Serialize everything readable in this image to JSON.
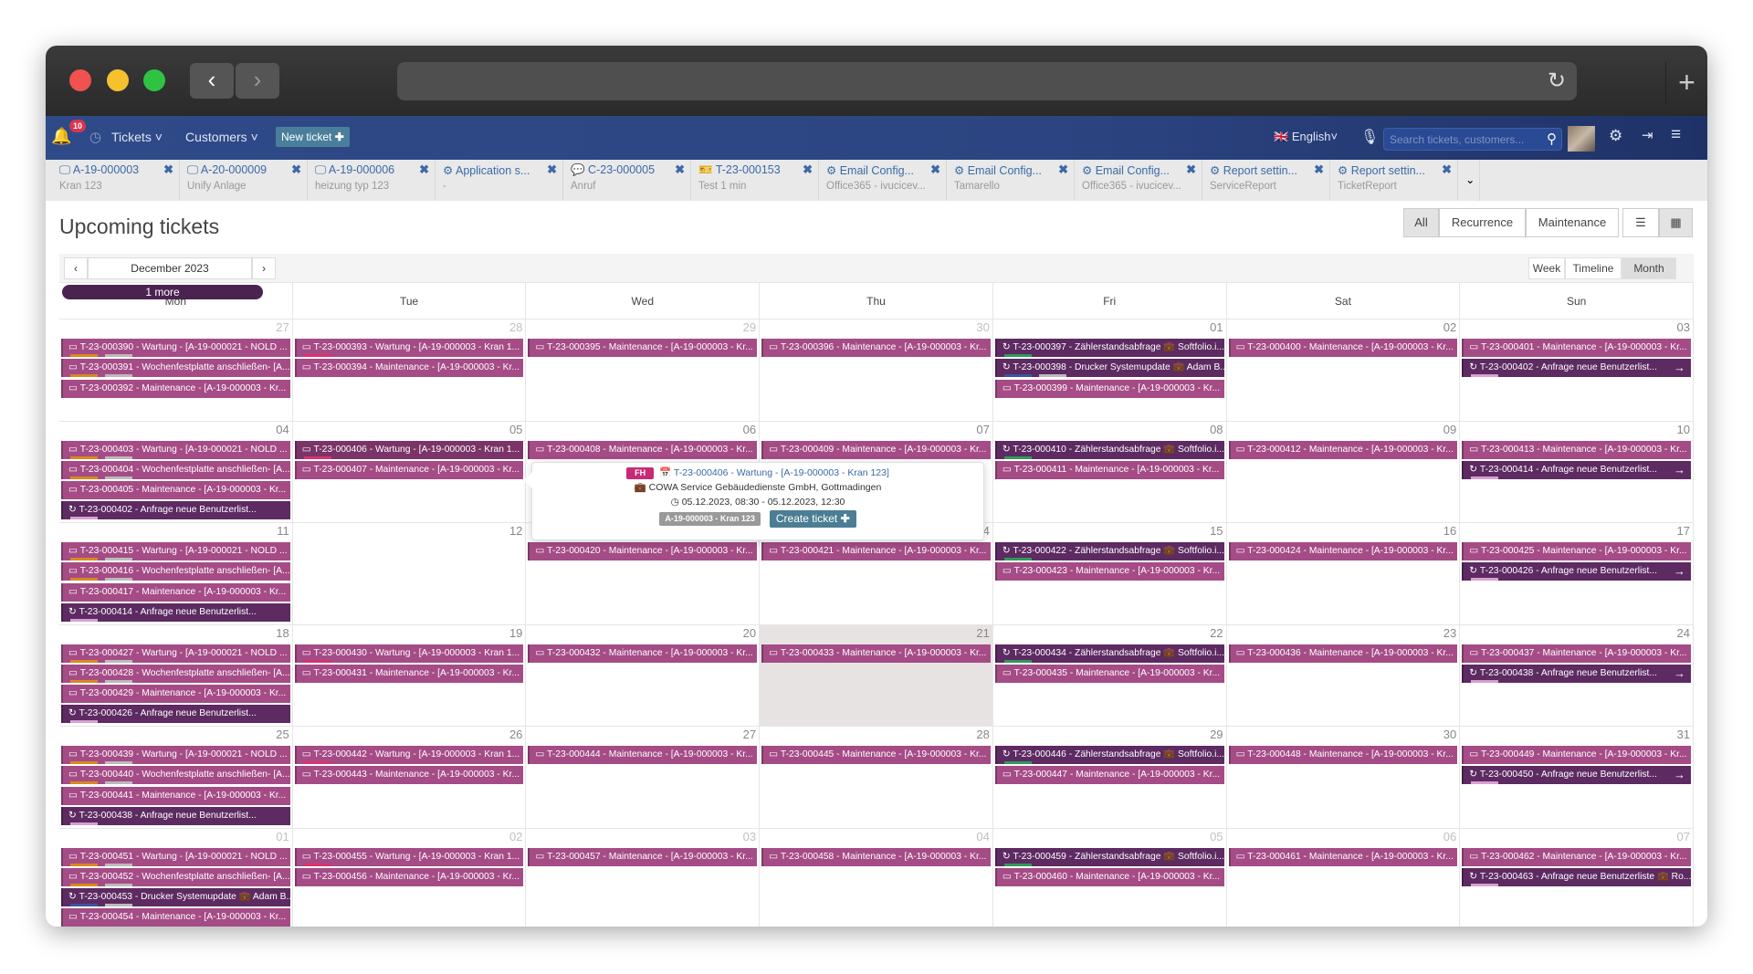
{
  "nav": {
    "notifications": "10",
    "tickets": "Tickets",
    "customers": "Customers",
    "new_ticket": "New ticket",
    "language": "English",
    "search_placeholder": "Search tickets, customers..."
  },
  "tabs": [
    {
      "icon": "monitor",
      "title": "A-19-000003",
      "sub": "Kran 123"
    },
    {
      "icon": "monitor",
      "title": "A-20-000009",
      "sub": "Unify Anlage"
    },
    {
      "icon": "monitor",
      "title": "A-19-000006",
      "sub": "heizung typ 123"
    },
    {
      "icon": "gear",
      "title": "Application s...",
      "sub": "-"
    },
    {
      "icon": "chat",
      "title": "C-23-000005",
      "sub": "Anruf"
    },
    {
      "icon": "ticket",
      "title": "T-23-000153",
      "sub": "Test 1 min"
    },
    {
      "icon": "gear",
      "title": "Email Config...",
      "sub": "Office365 - ivucicev..."
    },
    {
      "icon": "gear",
      "title": "Email Config...",
      "sub": "Tamarello"
    },
    {
      "icon": "gear",
      "title": "Email Config...",
      "sub": "Office365 - ivucicev..."
    },
    {
      "icon": "gear",
      "title": "Report settin...",
      "sub": "ServiceReport"
    },
    {
      "icon": "gear",
      "title": "Report settin...",
      "sub": "TicketReport"
    }
  ],
  "page": {
    "title": "Upcoming tickets",
    "filters": [
      "All",
      "Recurrence",
      "Maintenance"
    ],
    "active_filter": "All",
    "month": "December 2023",
    "views": [
      "Week",
      "Timeline",
      "Month"
    ],
    "active_view": "Month"
  },
  "colors": {
    "maintenance": "#a54c87",
    "recurrence": "#5d2a62",
    "nav": "#2f4a88",
    "badge": "#c52b77"
  },
  "weekdays": [
    "Mon",
    "Tue",
    "Wed",
    "Thu",
    "Fri",
    "Sat",
    "Sun"
  ],
  "weeks": [
    {
      "days": [
        {
          "num": "27",
          "muted": true,
          "events": [
            {
              "text": "T-23-000390 - Wartung - [A-19-000021 - NOLD ...",
              "kind": "m",
              "tags": [
                "#d88a1e",
                "#bbb"
              ]
            },
            {
              "text": "T-23-000391 - Wochenfestplatte anschließen- [A...",
              "kind": "m",
              "tags": [
                "#d88a1e",
                "#bbb"
              ]
            },
            {
              "text": "T-23-000392 - Maintenance - [A-19-000003 - Kr...",
              "kind": "m"
            }
          ]
        },
        {
          "num": "28",
          "muted": true,
          "events": [
            {
              "text": "T-23-000393 - Wartung - [A-19-000003 - Kran 1...",
              "kind": "m",
              "tags": [
                "#d9336f"
              ]
            },
            {
              "text": "T-23-000394 - Maintenance - [A-19-000003 - Kr...",
              "kind": "m"
            }
          ]
        },
        {
          "num": "29",
          "muted": true,
          "events": [
            {
              "text": "T-23-000395 - Maintenance - [A-19-000003 - Kr...",
              "kind": "m"
            }
          ]
        },
        {
          "num": "30",
          "muted": true,
          "events": [
            {
              "text": "T-23-000396 - Maintenance - [A-19-000003 - Kr...",
              "kind": "m"
            }
          ]
        },
        {
          "num": "01",
          "events": [
            {
              "text": "T-23-000397 - Zählerstandsabfrage 💼 Softfolio.i...",
              "kind": "r",
              "tags": [
                "#2f9a5a"
              ]
            },
            {
              "text": "T-23-000398 - Drucker Systemupdate 💼 Adam B...",
              "kind": "r",
              "tags": [
                "#3a55a0",
                "#bbb"
              ]
            },
            {
              "text": "T-23-000399 - Maintenance - [A-19-000003 - Kr...",
              "kind": "m"
            }
          ]
        },
        {
          "num": "02",
          "events": [
            {
              "text": "T-23-000400 - Maintenance - [A-19-000003 - Kr...",
              "kind": "m"
            }
          ]
        },
        {
          "num": "03",
          "events": [
            {
              "text": "T-23-000401 - Maintenance - [A-19-000003 - Kr...",
              "kind": "m"
            },
            {
              "text": "T-23-000402 - Anfrage neue Benutzerlist...",
              "kind": "r",
              "arrow": true,
              "tags": [
                "#d9a0d0"
              ]
            }
          ]
        }
      ]
    },
    {
      "days": [
        {
          "num": "04",
          "events": [
            {
              "text": "T-23-000403 - Wartung - [A-19-000021 - NOLD ...",
              "kind": "m",
              "tags": [
                "#d88a1e",
                "#bbb"
              ]
            },
            {
              "text": "T-23-000404 - Wochenfestplatte anschließen- [A...",
              "kind": "m",
              "tags": [
                "#d88a1e",
                "#bbb"
              ]
            },
            {
              "text": "T-23-000405 - Maintenance - [A-19-000003 - Kr...",
              "kind": "m"
            },
            {
              "text": "T-23-000402 - Anfrage neue Benutzerlist...",
              "kind": "r",
              "tags": [
                "#d9a0d0"
              ]
            }
          ]
        },
        {
          "num": "05",
          "events": [
            {
              "text": "T-23-000406 - Wartung - [A-19-000003 - Kran 1...",
              "kind": "m",
              "highlight": true,
              "tags": [
                "#d9336f"
              ]
            },
            {
              "text": "T-23-000407 - Maintenance - [A-19-000003 - Kr...",
              "kind": "m"
            }
          ]
        },
        {
          "num": "06",
          "events": [
            {
              "text": "T-23-000408 - Maintenance - [A-19-000003 - Kr...",
              "kind": "m"
            }
          ]
        },
        {
          "num": "07",
          "events": [
            {
              "text": "T-23-000409 - Maintenance - [A-19-000003 - Kr...",
              "kind": "m"
            }
          ]
        },
        {
          "num": "08",
          "events": [
            {
              "text": "T-23-000410 - Zählerstandsabfrage 💼 Softfolio.i...",
              "kind": "r",
              "tags": [
                "#2f9a5a"
              ]
            },
            {
              "text": "T-23-000411 - Maintenance - [A-19-000003 - Kr...",
              "kind": "m"
            }
          ]
        },
        {
          "num": "09",
          "events": [
            {
              "text": "T-23-000412 - Maintenance - [A-19-000003 - Kr...",
              "kind": "m"
            }
          ]
        },
        {
          "num": "10",
          "events": [
            {
              "text": "T-23-000413 - Maintenance - [A-19-000003 - Kr...",
              "kind": "m"
            },
            {
              "text": "T-23-000414 - Anfrage neue Benutzerlist...",
              "kind": "r",
              "arrow": true,
              "tags": [
                "#d9a0d0"
              ]
            }
          ]
        }
      ]
    },
    {
      "days": [
        {
          "num": "11",
          "events": [
            {
              "text": "T-23-000415 - Wartung - [A-19-000021 - NOLD ...",
              "kind": "m",
              "tags": [
                "#d88a1e",
                "#bbb"
              ]
            },
            {
              "text": "T-23-000416 - Wochenfestplatte anschließen- [A...",
              "kind": "m",
              "tags": [
                "#d88a1e",
                "#bbb"
              ]
            },
            {
              "text": "T-23-000417 - Maintenance - [A-19-000003 - Kr...",
              "kind": "m"
            },
            {
              "text": "T-23-000414 - Anfrage neue Benutzerlist...",
              "kind": "r",
              "tags": [
                "#d9a0d0"
              ]
            }
          ]
        },
        {
          "num": "12",
          "events": []
        },
        {
          "num": "13",
          "events": [
            {
              "text": "T-23-000420 - Maintenance - [A-19-000003 - Kr...",
              "kind": "m"
            }
          ]
        },
        {
          "num": "14",
          "events": [
            {
              "text": "T-23-000421 - Maintenance - [A-19-000003 - Kr...",
              "kind": "m"
            }
          ]
        },
        {
          "num": "15",
          "events": [
            {
              "text": "T-23-000422 - Zählerstandsabfrage 💼 Softfolio.i...",
              "kind": "r",
              "tags": [
                "#2f9a5a"
              ]
            },
            {
              "text": "T-23-000423 - Maintenance - [A-19-000003 - Kr...",
              "kind": "m"
            }
          ]
        },
        {
          "num": "16",
          "events": [
            {
              "text": "T-23-000424 - Maintenance - [A-19-000003 - Kr...",
              "kind": "m"
            }
          ]
        },
        {
          "num": "17",
          "events": [
            {
              "text": "T-23-000425 - Maintenance - [A-19-000003 - Kr...",
              "kind": "m"
            },
            {
              "text": "T-23-000426 - Anfrage neue Benutzerlist...",
              "kind": "r",
              "arrow": true,
              "tags": [
                "#d9a0d0"
              ]
            }
          ]
        }
      ]
    },
    {
      "days": [
        {
          "num": "18",
          "events": [
            {
              "text": "T-23-000427 - Wartung - [A-19-000021 - NOLD ...",
              "kind": "m",
              "tags": [
                "#d88a1e",
                "#bbb"
              ]
            },
            {
              "text": "T-23-000428 - Wochenfestplatte anschließen- [A...",
              "kind": "m",
              "tags": [
                "#d88a1e",
                "#bbb"
              ]
            },
            {
              "text": "T-23-000429 - Maintenance - [A-19-000003 - Kr...",
              "kind": "m"
            },
            {
              "text": "T-23-000426 - Anfrage neue Benutzerlist...",
              "kind": "r",
              "tags": [
                "#d9a0d0"
              ]
            }
          ]
        },
        {
          "num": "19",
          "events": [
            {
              "text": "T-23-000430 - Wartung - [A-19-000003 - Kran 1...",
              "kind": "m",
              "tags": [
                "#d9336f"
              ]
            },
            {
              "text": "T-23-000431 - Maintenance - [A-19-000003 - Kr...",
              "kind": "m"
            }
          ]
        },
        {
          "num": "20",
          "events": [
            {
              "text": "T-23-000432 - Maintenance - [A-19-000003 - Kr...",
              "kind": "m"
            }
          ]
        },
        {
          "num": "21",
          "today": true,
          "events": [
            {
              "text": "T-23-000433 - Maintenance - [A-19-000003 - Kr...",
              "kind": "m"
            }
          ]
        },
        {
          "num": "22",
          "events": [
            {
              "text": "T-23-000434 - Zählerstandsabfrage 💼 Softfolio.i...",
              "kind": "r",
              "tags": [
                "#2f9a5a"
              ]
            },
            {
              "text": "T-23-000435 - Maintenance - [A-19-000003 - Kr...",
              "kind": "m"
            }
          ]
        },
        {
          "num": "23",
          "events": [
            {
              "text": "T-23-000436 - Maintenance - [A-19-000003 - Kr...",
              "kind": "m"
            }
          ]
        },
        {
          "num": "24",
          "events": [
            {
              "text": "T-23-000437 - Maintenance - [A-19-000003 - Kr...",
              "kind": "m"
            },
            {
              "text": "T-23-000438 - Anfrage neue Benutzerlist...",
              "kind": "r",
              "arrow": true,
              "tags": [
                "#d9a0d0"
              ]
            }
          ]
        }
      ]
    },
    {
      "more": "1 more",
      "days": [
        {
          "num": "25",
          "events": [
            {
              "text": "T-23-000439 - Wartung - [A-19-000021 - NOLD ...",
              "kind": "m",
              "tags": [
                "#d88a1e",
                "#bbb"
              ]
            },
            {
              "text": "T-23-000440 - Wochenfestplatte anschließen- [A...",
              "kind": "m",
              "tags": [
                "#d88a1e",
                "#bbb"
              ]
            },
            {
              "text": "T-23-000441 - Maintenance - [A-19-000003 - Kr...",
              "kind": "m"
            },
            {
              "text": "T-23-000438 - Anfrage neue Benutzerlist...",
              "kind": "r",
              "tags": [
                "#d9a0d0"
              ]
            }
          ]
        },
        {
          "num": "26",
          "events": [
            {
              "text": "T-23-000442 - Wartung - [A-19-000003 - Kran 1...",
              "kind": "m",
              "tags": [
                "#d9336f"
              ]
            },
            {
              "text": "T-23-000443 - Maintenance - [A-19-000003 - Kr...",
              "kind": "m"
            }
          ]
        },
        {
          "num": "27",
          "events": [
            {
              "text": "T-23-000444 - Maintenance - [A-19-000003 - Kr...",
              "kind": "m"
            }
          ]
        },
        {
          "num": "28",
          "events": [
            {
              "text": "T-23-000445 - Maintenance - [A-19-000003 - Kr...",
              "kind": "m"
            }
          ]
        },
        {
          "num": "29",
          "events": [
            {
              "text": "T-23-000446 - Zählerstandsabfrage 💼 Softfolio.i...",
              "kind": "r",
              "tags": [
                "#2f9a5a"
              ]
            },
            {
              "text": "T-23-000447 - Maintenance - [A-19-000003 - Kr...",
              "kind": "m"
            }
          ]
        },
        {
          "num": "30",
          "events": [
            {
              "text": "T-23-000448 - Maintenance - [A-19-000003 - Kr...",
              "kind": "m"
            }
          ]
        },
        {
          "num": "31",
          "events": [
            {
              "text": "T-23-000449 - Maintenance - [A-19-000003 - Kr...",
              "kind": "m"
            },
            {
              "text": "T-23-000450 - Anfrage neue Benutzerlist...",
              "kind": "r",
              "arrow": true,
              "tags": [
                "#d9a0d0"
              ]
            }
          ]
        }
      ]
    },
    {
      "days": [
        {
          "num": "01",
          "muted": true,
          "events": [
            {
              "text": "T-23-000451 - Wartung - [A-19-000021 - NOLD ...",
              "kind": "m",
              "tags": [
                "#d88a1e",
                "#bbb"
              ]
            },
            {
              "text": "T-23-000452 - Wochenfestplatte anschließen- [A...",
              "kind": "m",
              "tags": [
                "#d88a1e",
                "#bbb"
              ]
            },
            {
              "text": "T-23-000453 - Drucker Systemupdate 💼 Adam B...",
              "kind": "r",
              "tags": [
                "#3a55a0",
                "#bbb"
              ]
            },
            {
              "text": "T-23-000454 - Maintenance - [A-19-000003 - Kr...",
              "kind": "m"
            }
          ]
        },
        {
          "num": "02",
          "muted": true,
          "events": [
            {
              "text": "T-23-000455 - Wartung - [A-19-000003 - Kran 1...",
              "kind": "m",
              "tags": [
                "#d9336f"
              ]
            },
            {
              "text": "T-23-000456 - Maintenance - [A-19-000003 - Kr...",
              "kind": "m"
            }
          ]
        },
        {
          "num": "03",
          "muted": true,
          "events": [
            {
              "text": "T-23-000457 - Maintenance - [A-19-000003 - Kr...",
              "kind": "m"
            }
          ]
        },
        {
          "num": "04",
          "muted": true,
          "events": [
            {
              "text": "T-23-000458 - Maintenance - [A-19-000003 - Kr...",
              "kind": "m"
            }
          ]
        },
        {
          "num": "05",
          "muted": true,
          "events": [
            {
              "text": "T-23-000459 - Zählerstandsabfrage 💼 Softfolio.i...",
              "kind": "r",
              "tags": [
                "#2f9a5a"
              ]
            },
            {
              "text": "T-23-000460 - Maintenance - [A-19-000003 - Kr...",
              "kind": "m"
            }
          ]
        },
        {
          "num": "06",
          "muted": true,
          "events": [
            {
              "text": "T-23-000461 - Maintenance - [A-19-000003 - Kr...",
              "kind": "m"
            }
          ]
        },
        {
          "num": "07",
          "muted": true,
          "events": [
            {
              "text": "T-23-000462 - Maintenance - [A-19-000003 - Kr...",
              "kind": "m"
            },
            {
              "text": "T-23-000463 - Anfrage neue Benutzerliste 💼 Ro...",
              "kind": "r",
              "tags": [
                "#d9a0d0"
              ]
            }
          ]
        }
      ]
    }
  ],
  "popup": {
    "badge": "FH",
    "title": "T-23-000406 - Wartung - [A-19-000003 - Kran 123]",
    "customer": "COWA Service Gebäudedienste GmbH, Gottmadingen",
    "time": "05.12.2023, 08:30 - 05.12.2023, 12:30",
    "asset": "A-19-000003 - Kran 123",
    "button": "Create ticket"
  }
}
